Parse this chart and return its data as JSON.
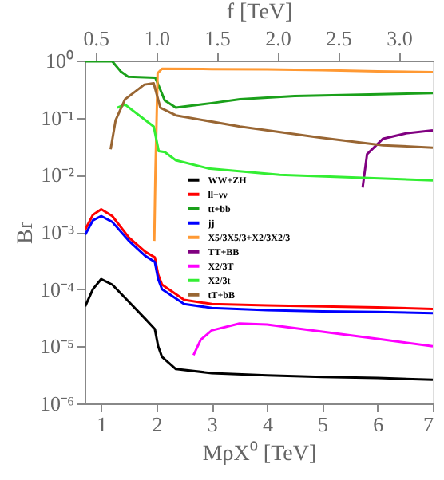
{
  "chart_data": {
    "type": "line",
    "xlabel": "MρX⁰ [TeV]",
    "ylabel": "Br",
    "x2label": "f [TeV]",
    "xlim": [
      0.7,
      7
    ],
    "xticks": [
      1,
      2,
      3,
      4,
      5,
      6,
      7
    ],
    "x2lim": [
      0.41,
      3.28
    ],
    "x2ticks": [
      0.5,
      {
        "value": 1,
        "label": "1.0"
      },
      1.5,
      {
        "value": 2,
        "label": "2.0"
      },
      2.5,
      {
        "value": 3,
        "label": "3.0"
      }
    ],
    "ylim": [
      1e-06,
      1
    ],
    "log": true,
    "yticks": [
      {
        "value": 1e-06,
        "label": "10⁻⁶"
      },
      {
        "value": 1e-05,
        "label": "10⁻⁵"
      },
      {
        "value": 0.0001,
        "label": "10⁻⁴"
      },
      {
        "value": 0.001,
        "label": "10⁻³"
      },
      {
        "value": 0.01,
        "label": "10⁻²"
      },
      {
        "value": 0.1,
        "label": "10⁻¹"
      },
      {
        "value": 1,
        "label": "10⁰"
      }
    ],
    "grid": false,
    "legend": "center",
    "line_style": "solid",
    "marker": "none",
    "series": [
      {
        "name": "WW+ZH",
        "color": "#000000",
        "x": [
          0.71,
          0.85,
          1.0,
          1.2,
          1.5,
          1.8,
          1.97,
          2.03,
          2.1,
          2.35,
          3,
          4,
          5,
          6,
          7
        ],
        "values": [
          5e-05,
          0.0001,
          0.00015,
          0.00012,
          6e-05,
          3e-05,
          2e-05,
          1e-05,
          6.5e-06,
          4e-06,
          3.4e-06,
          3.1e-06,
          2.9e-06,
          2.8e-06,
          2.6e-06
        ]
      },
      {
        "name": "ll+νν",
        "color": "#ff0000",
        "x": [
          0.71,
          0.85,
          1.0,
          1.2,
          1.5,
          1.8,
          1.97,
          2.03,
          2.1,
          2.5,
          3,
          4,
          5,
          6,
          7
        ],
        "values": [
          0.0011,
          0.002,
          0.0025,
          0.0019,
          0.0008,
          0.00045,
          0.00036,
          0.00018,
          0.00012,
          6.5e-05,
          5.5e-05,
          5.2e-05,
          5e-05,
          4.8e-05,
          4.5e-05
        ]
      },
      {
        "name": "tt+bb",
        "color": "#1aa01a",
        "x": [
          0.71,
          1.2,
          1.35,
          1.49,
          1.98,
          2.15,
          2.35,
          3.0,
          3.51,
          4.5,
          7
        ],
        "values": [
          0.97,
          0.97,
          0.65,
          0.52,
          0.5,
          0.2,
          0.15,
          0.18,
          0.21,
          0.24,
          0.27
        ]
      },
      {
        "name": "jj",
        "color": "#0000ff",
        "x": [
          0.71,
          0.85,
          1.0,
          1.2,
          1.5,
          1.8,
          1.97,
          2.03,
          2.1,
          2.5,
          3,
          4,
          5,
          6,
          7
        ],
        "values": [
          0.0009,
          0.0016,
          0.0019,
          0.0015,
          0.0007,
          0.00038,
          0.0003,
          0.00015,
          0.0001,
          5.5e-05,
          4.7e-05,
          4.3e-05,
          4.1e-05,
          4e-05,
          3.8e-05
        ]
      },
      {
        "name": "X5/3X5/3+X2/3X2/3",
        "color": "#ff9933",
        "x": [
          1.96,
          1.98,
          2.02,
          2.1,
          3,
          4,
          5,
          6,
          7
        ],
        "values": [
          0.0007,
          0.01,
          0.6,
          0.72,
          0.71,
          0.7,
          0.68,
          0.65,
          0.63
        ]
      },
      {
        "name": "TT+BB",
        "color": "#800080",
        "x": [
          5.73,
          5.81,
          6.1,
          6.5,
          7
        ],
        "values": [
          0.006,
          0.023,
          0.043,
          0.053,
          0.06
        ]
      },
      {
        "name": "X2/3T",
        "color": "#ff00ff",
        "x": [
          2.67,
          2.8,
          3.0,
          3.5,
          4,
          5,
          6,
          7
        ],
        "values": [
          7e-06,
          1.3e-05,
          1.9e-05,
          2.5e-05,
          2.4e-05,
          1.8e-05,
          1.35e-05,
          1e-05
        ]
      },
      {
        "name": "X2/3t",
        "color": "#33ee33",
        "x": [
          1.29,
          1.43,
          1.95,
          2.04,
          2.15,
          2.35,
          2.93,
          4.23,
          7
        ],
        "values": [
          0.15,
          0.17,
          0.07,
          0.026,
          0.025,
          0.018,
          0.013,
          0.01,
          0.008
        ]
      },
      {
        "name": "tT+bB",
        "color": "#996633",
        "x": [
          1.17,
          1.26,
          1.43,
          1.78,
          1.95,
          2.07,
          2.35,
          3.51,
          4.95,
          6.1,
          7
        ],
        "values": [
          0.028,
          0.09,
          0.21,
          0.38,
          0.4,
          0.15,
          0.11,
          0.07,
          0.045,
          0.033,
          0.03
        ]
      }
    ]
  }
}
